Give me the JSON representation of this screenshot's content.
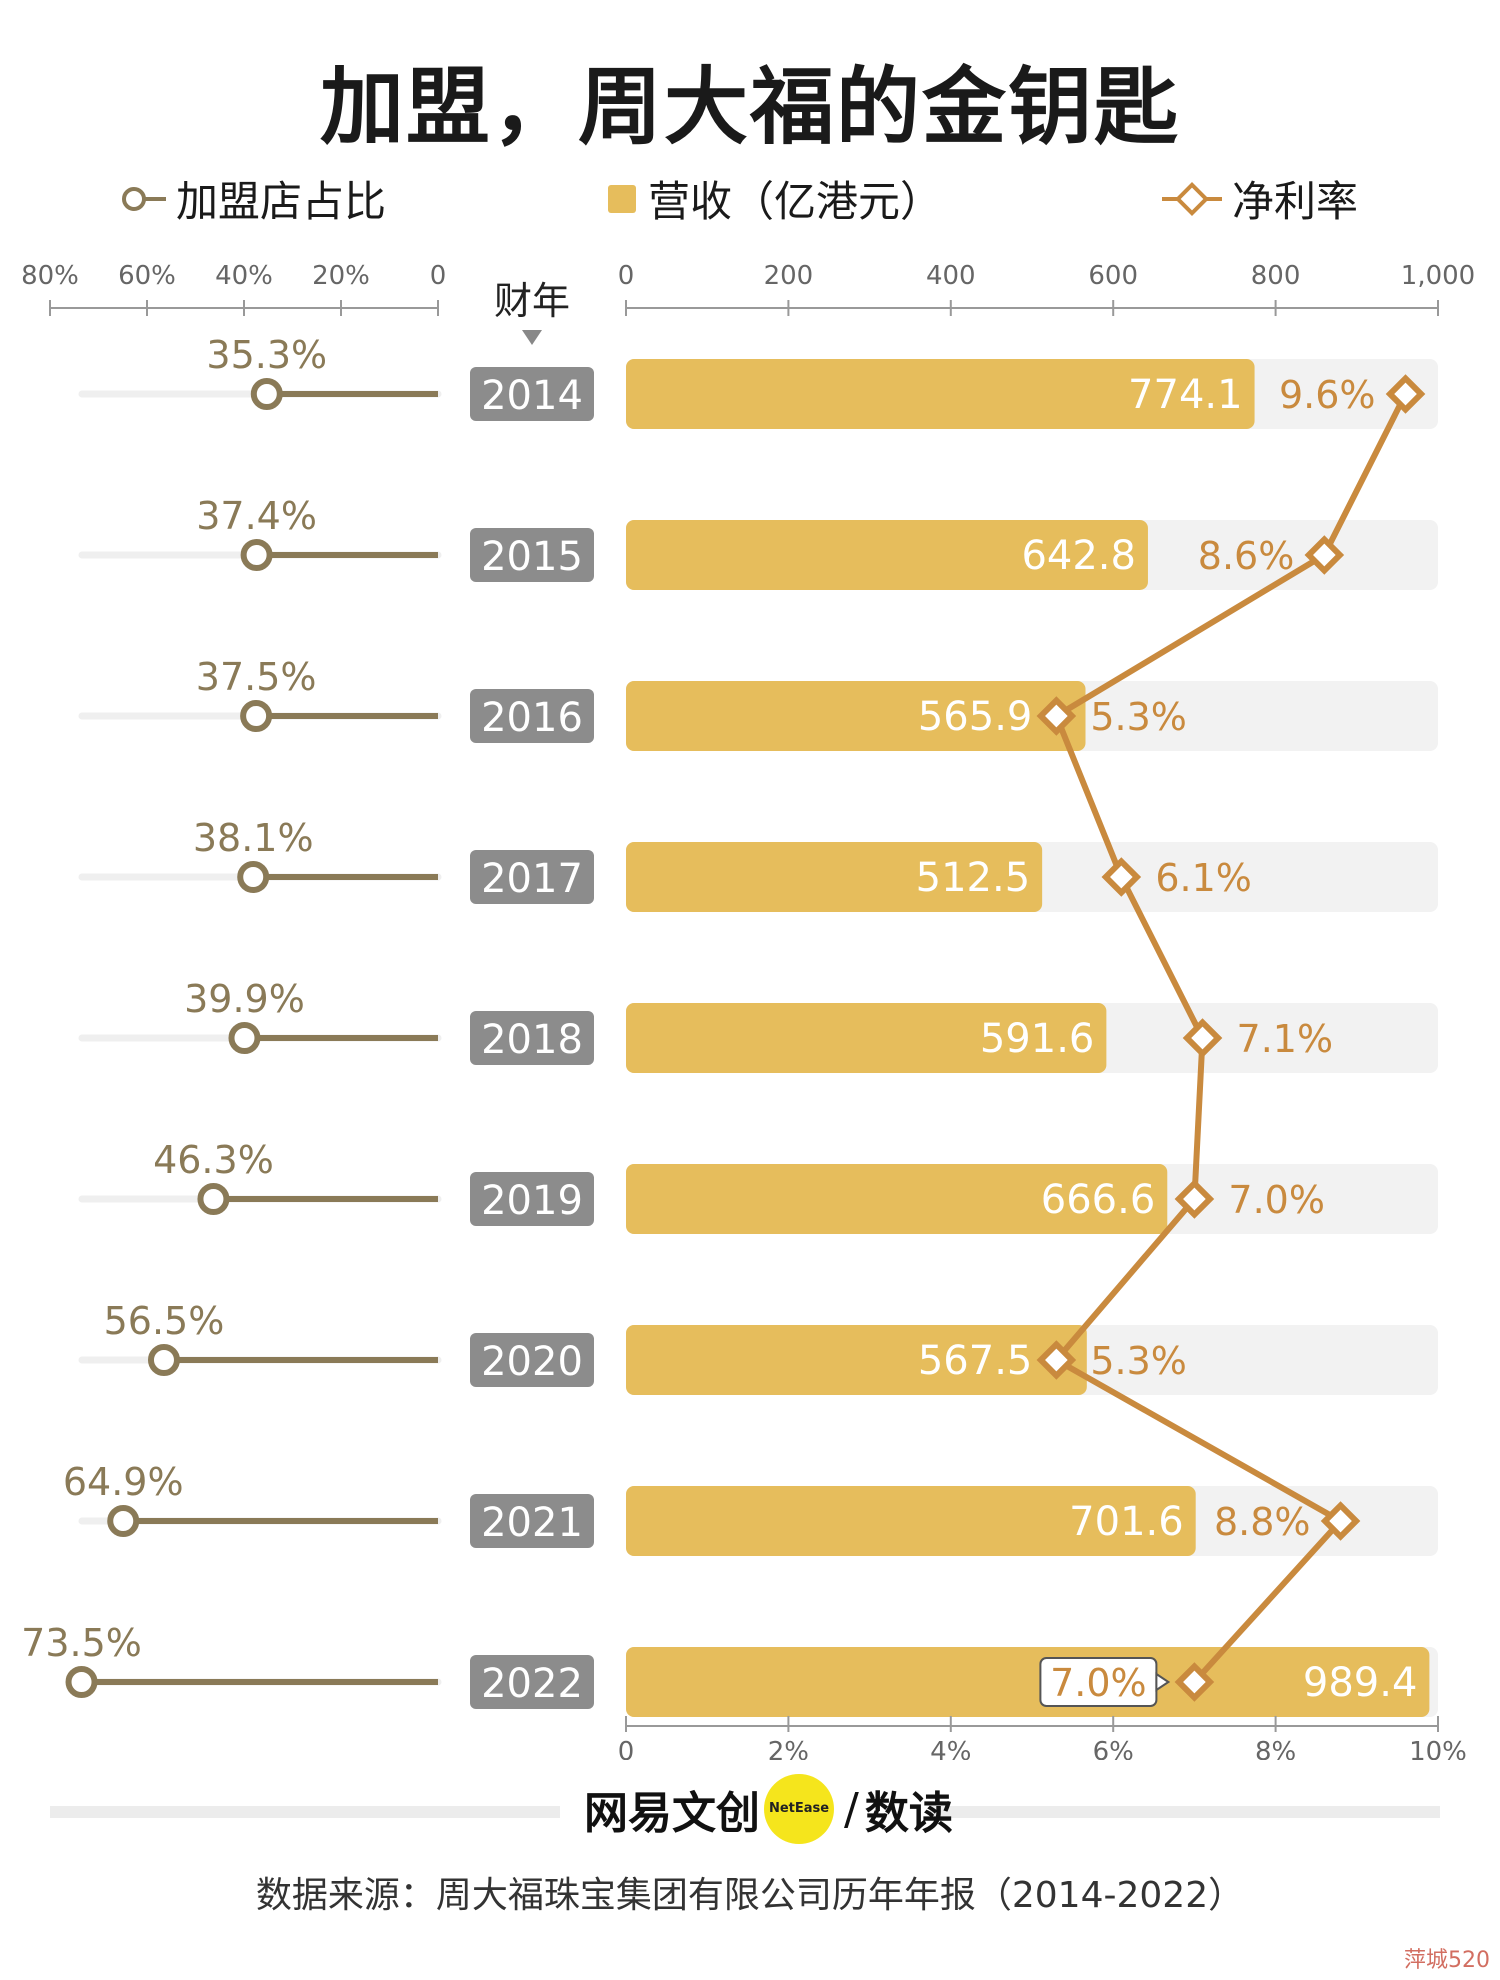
{
  "title": "加盟，周大福的金钥匙",
  "legend": {
    "franchise": "加盟店占比",
    "revenue": "营收（亿港元）",
    "margin": "净利率"
  },
  "colors": {
    "franchise": "#8a7a57",
    "franchise_track": "#efefef",
    "revenue": "#e6bd5c",
    "revenue_track": "#f2f2f2",
    "margin": "#c98a3e",
    "year_box": "#8c8c8c",
    "axis_text": "#666666"
  },
  "left_axis_ticks": [
    "80%",
    "60%",
    "40%",
    "20%",
    "0"
  ],
  "year_header": "财年",
  "top_axis_ticks": [
    "0",
    "200",
    "400",
    "600",
    "800",
    "1,000"
  ],
  "bottom_axis_ticks": [
    "0",
    "2%",
    "4%",
    "6%",
    "8%",
    "10%"
  ],
  "chart_data": {
    "type": "bar",
    "categories": [
      "2014",
      "2015",
      "2016",
      "2017",
      "2018",
      "2019",
      "2020",
      "2021",
      "2022"
    ],
    "series": [
      {
        "name": "加盟店占比",
        "type": "dot",
        "values": [
          35.3,
          37.4,
          37.5,
          38.1,
          39.9,
          46.3,
          56.5,
          64.9,
          73.5
        ],
        "labels": [
          "35.3%",
          "37.4%",
          "37.5%",
          "38.1%",
          "39.9%",
          "46.3%",
          "56.5%",
          "64.9%",
          "73.5%"
        ],
        "range": [
          0,
          80
        ]
      },
      {
        "name": "营收（亿港元）",
        "type": "bar",
        "values": [
          774.1,
          642.8,
          565.9,
          512.5,
          591.6,
          666.6,
          567.5,
          701.6,
          989.4
        ],
        "labels": [
          "774.1",
          "642.8",
          "565.9",
          "512.5",
          "591.6",
          "666.6",
          "567.5",
          "701.6",
          "989.4"
        ],
        "range": [
          0,
          1000
        ]
      },
      {
        "name": "净利率",
        "type": "line",
        "values": [
          9.6,
          8.6,
          5.3,
          6.1,
          7.1,
          7.0,
          5.3,
          8.8,
          7.0
        ],
        "labels": [
          "9.6%",
          "8.6%",
          "5.3%",
          "6.1%",
          "7.1%",
          "7.0%",
          "5.3%",
          "8.8%",
          "7.0%"
        ],
        "range": [
          0,
          10
        ]
      }
    ]
  },
  "brand": {
    "name": "网易文创",
    "badge": "NetEase",
    "section": "数读"
  },
  "source": "数据来源：周大福珠宝集团有限公司历年年报（2014-2022）",
  "watermark": "萍城520"
}
